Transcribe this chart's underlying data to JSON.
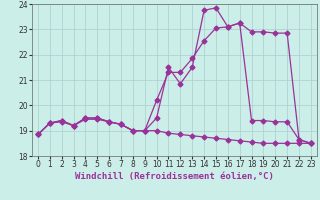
{
  "line1_x": [
    0,
    1,
    2,
    3,
    4,
    5,
    6,
    7,
    8,
    9,
    10,
    11,
    12,
    13,
    14,
    15,
    16,
    17,
    18,
    19,
    20,
    21,
    22,
    23
  ],
  "line1_y": [
    18.85,
    19.3,
    19.4,
    19.2,
    19.5,
    19.5,
    19.35,
    19.25,
    19.0,
    19.0,
    19.5,
    21.5,
    20.85,
    21.5,
    23.75,
    23.85,
    23.1,
    23.25,
    19.4,
    19.4,
    19.35,
    19.35,
    18.65,
    18.5
  ],
  "line2_x": [
    0,
    1,
    2,
    3,
    4,
    5,
    6,
    7,
    8,
    9,
    10,
    11,
    12,
    13,
    14,
    15,
    16,
    17,
    18,
    19,
    20,
    21,
    22,
    23
  ],
  "line2_y": [
    18.85,
    19.3,
    19.4,
    19.2,
    19.5,
    19.5,
    19.35,
    19.25,
    19.0,
    19.0,
    20.2,
    21.3,
    21.3,
    21.85,
    22.55,
    23.05,
    23.1,
    23.25,
    22.9,
    22.9,
    22.85,
    22.85,
    18.65,
    18.5
  ],
  "line3_x": [
    0,
    1,
    2,
    3,
    4,
    5,
    6,
    7,
    8,
    9,
    10,
    11,
    12,
    13,
    14,
    15,
    16,
    17,
    18,
    19,
    20,
    21,
    22,
    23
  ],
  "line3_y": [
    18.85,
    19.3,
    19.35,
    19.2,
    19.45,
    19.45,
    19.35,
    19.25,
    19.0,
    19.0,
    19.0,
    18.9,
    18.85,
    18.8,
    18.75,
    18.7,
    18.65,
    18.6,
    18.55,
    18.5,
    18.5,
    18.5,
    18.5,
    18.5
  ],
  "line_color": "#993399",
  "marker": "D",
  "markersize": 2.5,
  "bg_color": "#cceee8",
  "grid_color": "#aacccc",
  "xlabel": "Windchill (Refroidissement éolien,°C)",
  "ylim": [
    18,
    24
  ],
  "xlim": [
    -0.5,
    23.5
  ],
  "yticks": [
    18,
    19,
    20,
    21,
    22,
    23,
    24
  ],
  "xticks": [
    0,
    1,
    2,
    3,
    4,
    5,
    6,
    7,
    8,
    9,
    10,
    11,
    12,
    13,
    14,
    15,
    16,
    17,
    18,
    19,
    20,
    21,
    22,
    23
  ],
  "tick_fontsize": 5.5,
  "xlabel_fontsize": 6.5
}
